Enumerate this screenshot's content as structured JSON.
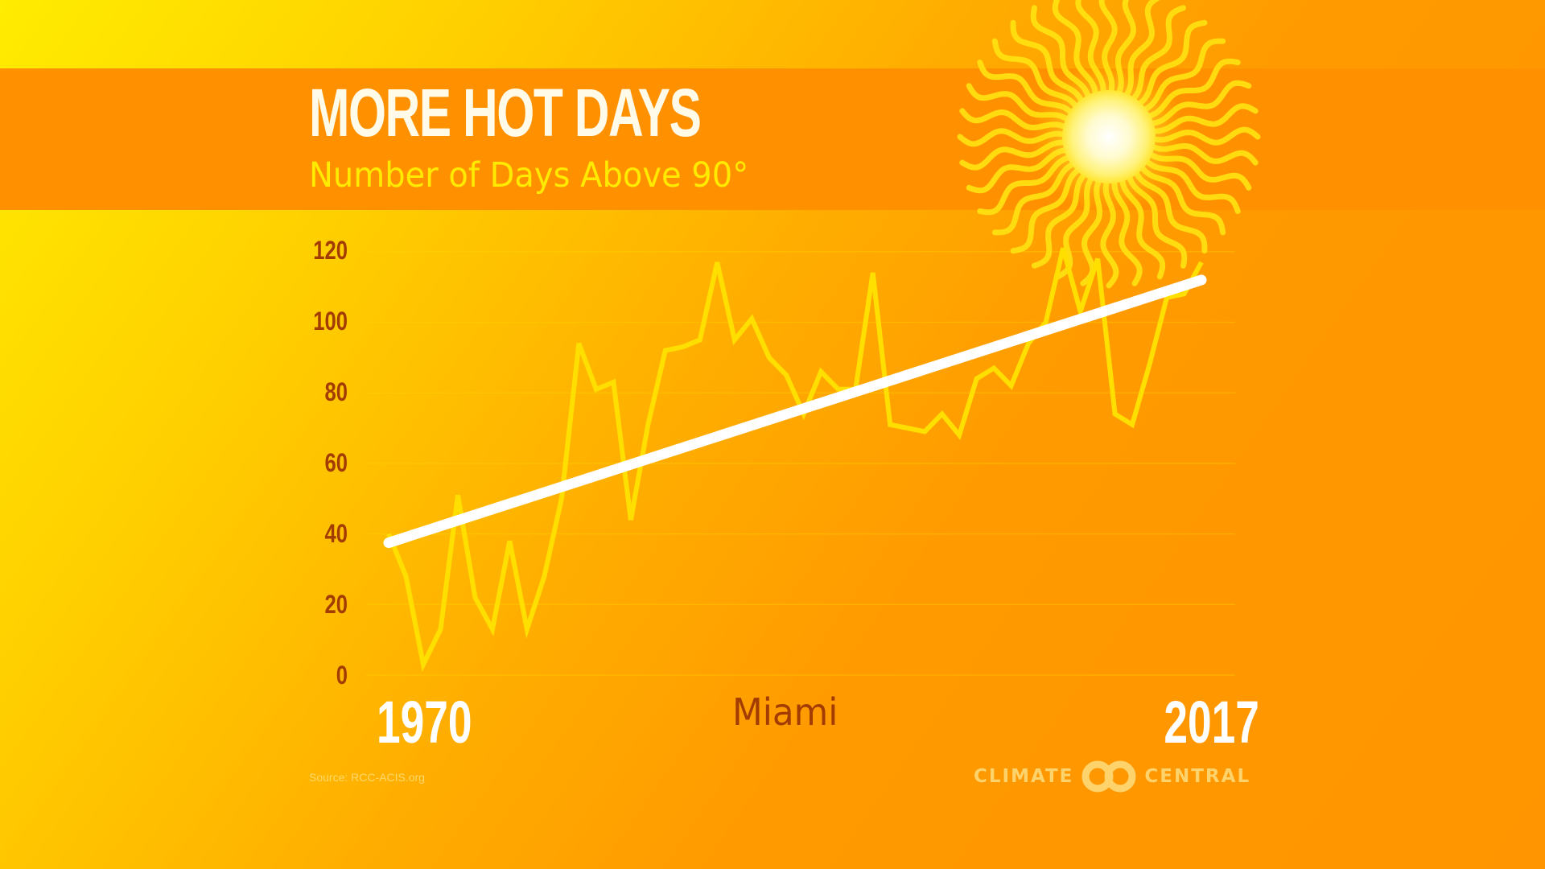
{
  "header": {
    "title": "MORE HOT DAYS",
    "subtitle": "Number of Days Above 90°"
  },
  "axis": {
    "y_ticks": [
      "120",
      "100",
      "80",
      "60",
      "40",
      "20",
      "0"
    ],
    "x_start": "1970",
    "x_end": "2017",
    "location": "Miami"
  },
  "footer": {
    "source": "Source: RCC-ACIS.org",
    "logo_left": "CLIMATE",
    "logo_right": "CENTRAL"
  },
  "colors": {
    "banner": "#ff9100",
    "title": "#fffbe8",
    "subtitle": "#ffea00",
    "axis_label": "#a33c00",
    "data_line": "#ffdf00",
    "trend_line": "#ffffff",
    "logo": "#ffd36b"
  },
  "chart_data": {
    "type": "line",
    "title": "MORE HOT DAYS",
    "subtitle": "Number of Days Above 90°",
    "xlabel": "Miami",
    "ylabel": "",
    "x": [
      1970,
      1971,
      1972,
      1973,
      1974,
      1975,
      1976,
      1977,
      1978,
      1979,
      1980,
      1981,
      1982,
      1983,
      1984,
      1985,
      1986,
      1987,
      1988,
      1989,
      1990,
      1991,
      1992,
      1993,
      1994,
      1995,
      1996,
      1997,
      1998,
      1999,
      2000,
      2001,
      2002,
      2003,
      2004,
      2005,
      2006,
      2007,
      2008,
      2009,
      2010,
      2011,
      2012,
      2013,
      2014,
      2015,
      2016,
      2017
    ],
    "series": [
      {
        "name": "Days above 90°",
        "values": [
          40,
          28,
          3,
          13,
          51,
          22,
          13,
          38,
          13,
          28,
          50,
          94,
          81,
          83,
          44,
          71,
          92,
          93,
          95,
          117,
          95,
          101,
          90,
          85,
          74,
          86,
          81,
          81,
          114,
          71,
          70,
          69,
          74,
          68,
          84,
          87,
          82,
          94,
          100,
          121,
          103,
          118,
          74,
          71,
          88,
          107,
          108,
          117
        ]
      },
      {
        "name": "Trend",
        "x": [
          1970,
          2017
        ],
        "values": [
          37.5,
          112
        ]
      }
    ],
    "ylim": [
      0,
      120
    ],
    "y_ticks": [
      0,
      20,
      40,
      60,
      80,
      100,
      120
    ],
    "x_tick_labels": [
      "1970",
      "2017"
    ],
    "grid": true,
    "legend": "none",
    "source": "Source: RCC-ACIS.org"
  }
}
